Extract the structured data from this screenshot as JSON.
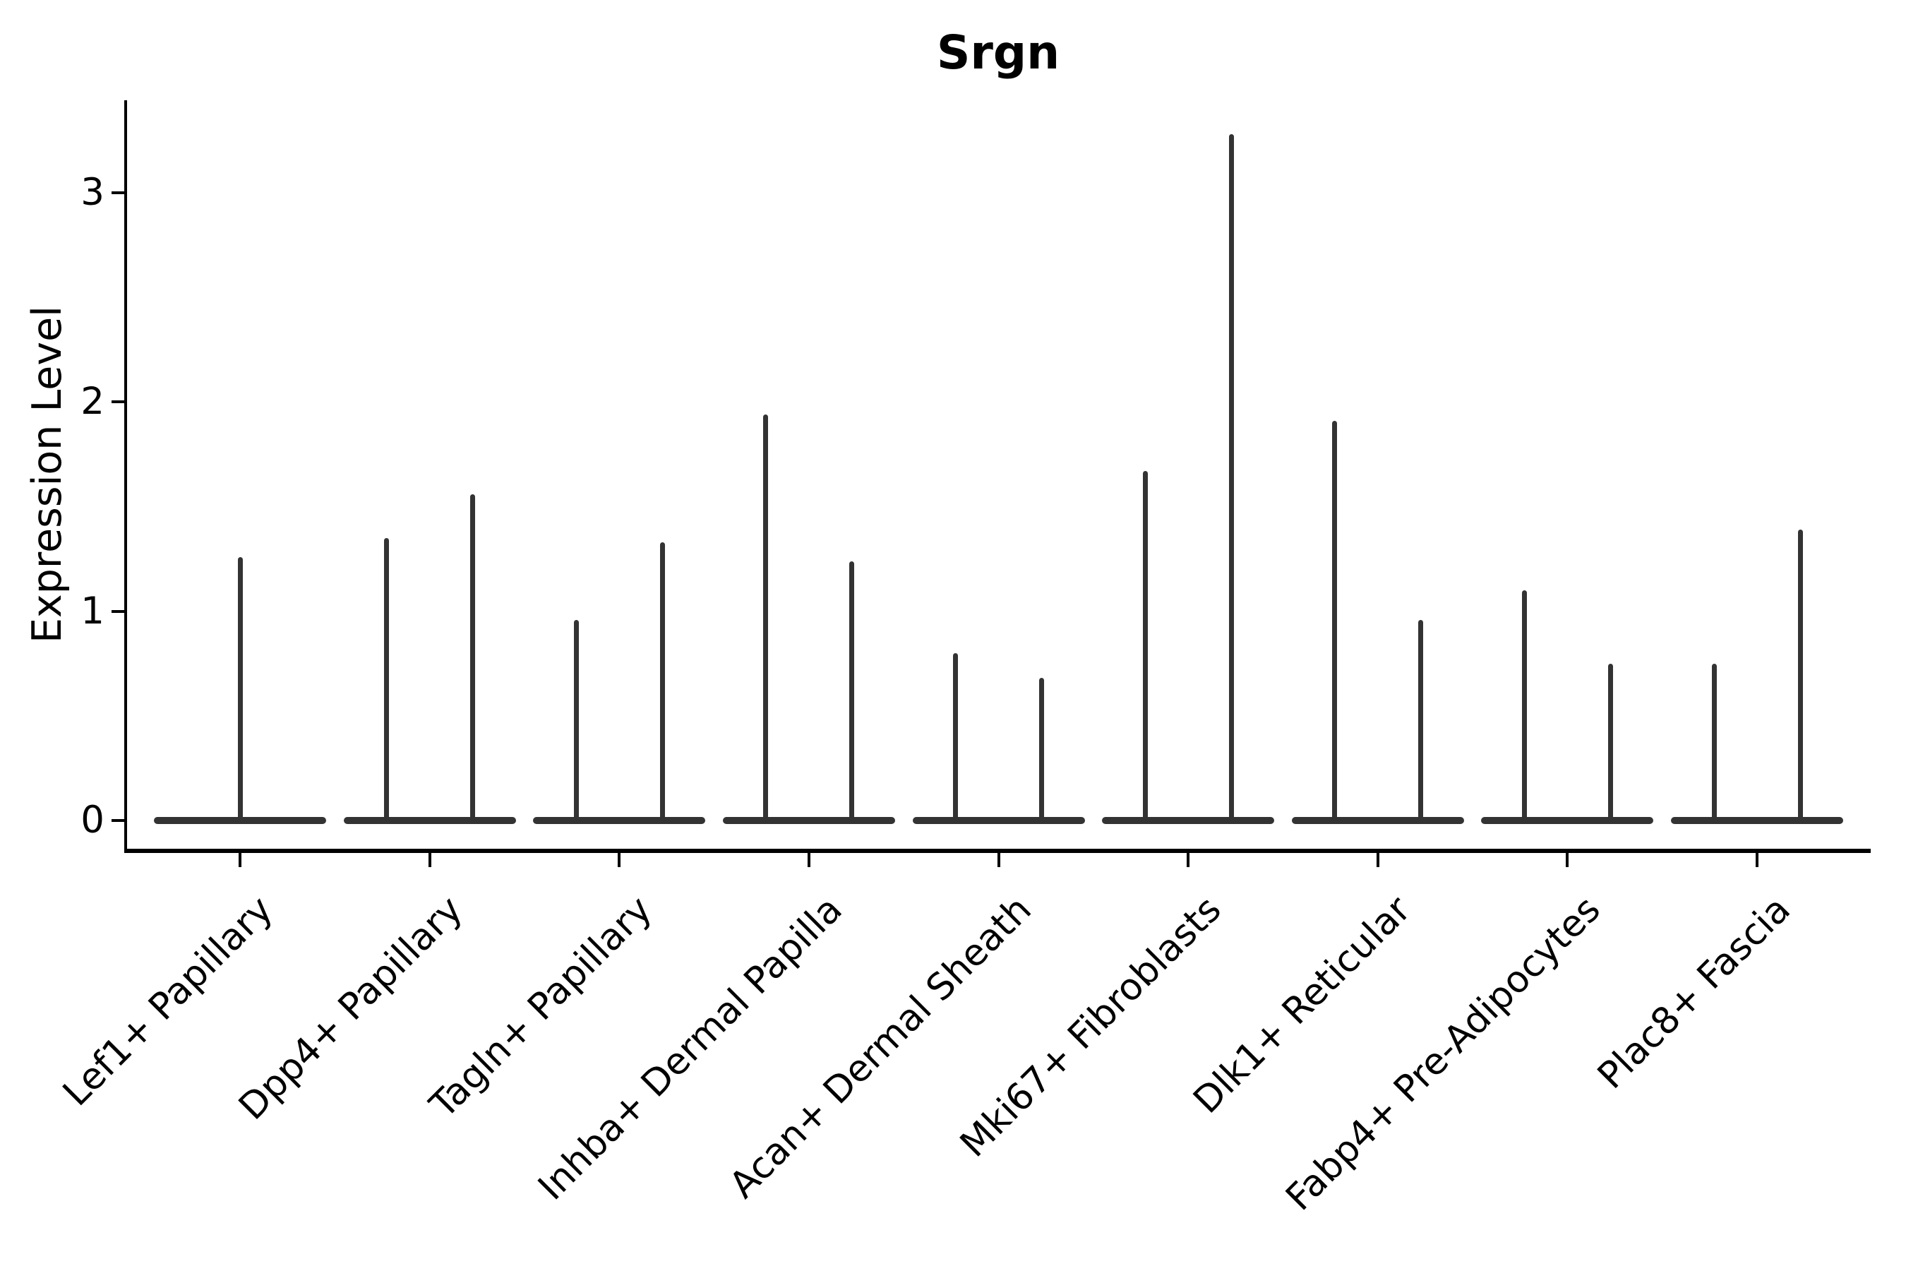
{
  "chart_data": {
    "type": "violin",
    "title": "Srgn",
    "xlabel": "",
    "ylabel": "Expression Level",
    "yticks": [
      0,
      1,
      2,
      3
    ],
    "ylim": [
      -0.145,
      3.45
    ],
    "grid": false,
    "legend": null,
    "categories": [
      "Lef1+ Papillary",
      "Dpp4+ Papillary",
      "Tagln+ Papillary",
      "Inhba+ Dermal Papilla",
      "Acan+ Dermal Sheath",
      "Mki67+ Fibroblasts",
      "Dlk1+ Reticular",
      "Fabp4+ Pre-Adipocytes",
      "Plac8+ Fascia"
    ],
    "violins": [
      {
        "category": "Lef1+ Papillary",
        "split": false,
        "max_expression": [
          1.26
        ]
      },
      {
        "category": "Dpp4+ Papillary",
        "split": true,
        "max_expression": [
          1.35,
          1.56
        ]
      },
      {
        "category": "Tagln+ Papillary",
        "split": true,
        "max_expression": [
          0.96,
          1.33
        ]
      },
      {
        "category": "Inhba+ Dermal Papilla",
        "split": true,
        "max_expression": [
          1.94,
          1.24
        ]
      },
      {
        "category": "Acan+ Dermal Sheath",
        "split": true,
        "max_expression": [
          0.8,
          0.68
        ]
      },
      {
        "category": "Mki67+ Fibroblasts",
        "split": true,
        "max_expression": [
          1.67,
          3.28
        ]
      },
      {
        "category": "Dlk1+ Reticular",
        "split": true,
        "max_expression": [
          1.91,
          0.96
        ]
      },
      {
        "category": "Fabp4+ Pre-Adipocytes",
        "split": true,
        "max_expression": [
          1.1,
          0.75
        ]
      },
      {
        "category": "Plac8+ Fascia",
        "split": true,
        "max_expression": [
          0.75,
          1.39
        ]
      }
    ],
    "baseline_value": 0,
    "colors": {
      "violin": "#333333",
      "axis": "#000000",
      "text": "#000000",
      "background": "#ffffff"
    }
  }
}
